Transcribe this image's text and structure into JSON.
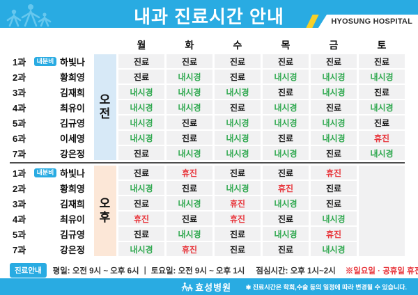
{
  "header": {
    "title": "내과 진료시간 안내",
    "hospital_en": "HYOSUNG HOSPITAL",
    "colors": {
      "bar": "#29abe2",
      "figures": "#66c7ee",
      "stripe": "#f7d028"
    }
  },
  "table": {
    "days": [
      "월",
      "화",
      "수",
      "목",
      "금",
      "토"
    ],
    "status_colors": {
      "진료": "#1b1b1b",
      "내시경": "#2ea84e",
      "휴진": "#e8353b"
    },
    "sections": [
      {
        "period": "오전",
        "period_bg": "#d7e9f7",
        "saturday_merged": false,
        "rows": [
          {
            "dept": "1과",
            "badge": "내분비",
            "name": "하빛나",
            "cells": [
              "진료",
              "진료",
              "진료",
              "진료",
              "진료",
              "진료"
            ]
          },
          {
            "dept": "2과",
            "badge": "",
            "name": "황희영",
            "cells": [
              "진료",
              "내시경",
              "진료",
              "내시경",
              "내시경",
              "내시경"
            ]
          },
          {
            "dept": "3과",
            "badge": "",
            "name": "김재희",
            "cells": [
              "내시경",
              "내시경",
              "내시경",
              "진료",
              "내시경",
              "진료"
            ]
          },
          {
            "dept": "4과",
            "badge": "",
            "name": "최유이",
            "cells": [
              "내시경",
              "내시경",
              "진료",
              "내시경",
              "진료",
              "내시경"
            ]
          },
          {
            "dept": "5과",
            "badge": "",
            "name": "김규영",
            "cells": [
              "내시경",
              "진료",
              "내시경",
              "내시경",
              "내시경",
              "진료"
            ]
          },
          {
            "dept": "6과",
            "badge": "",
            "name": "이세영",
            "cells": [
              "내시경",
              "진료",
              "내시경",
              "진료",
              "내시경",
              "휴진"
            ]
          },
          {
            "dept": "7과",
            "badge": "",
            "name": "강은정",
            "cells": [
              "진료",
              "내시경",
              "내시경",
              "내시경",
              "진료",
              "내시경"
            ]
          }
        ]
      },
      {
        "period": "오후",
        "period_bg": "#fce7d7",
        "saturday_merged": true,
        "rows": [
          {
            "dept": "1과",
            "badge": "내분비",
            "name": "하빛나",
            "cells": [
              "진료",
              "휴진",
              "진료",
              "진료",
              "휴진",
              ""
            ]
          },
          {
            "dept": "2과",
            "badge": "",
            "name": "황희영",
            "cells": [
              "내시경",
              "진료",
              "내시경",
              "휴진",
              "진료",
              ""
            ]
          },
          {
            "dept": "3과",
            "badge": "",
            "name": "김재희",
            "cells": [
              "진료",
              "내시경",
              "휴진",
              "내시경",
              "진료",
              ""
            ]
          },
          {
            "dept": "4과",
            "badge": "",
            "name": "최유이",
            "cells": [
              "휴진",
              "진료",
              "휴진",
              "진료",
              "내시경",
              ""
            ]
          },
          {
            "dept": "5과",
            "badge": "",
            "name": "김규영",
            "cells": [
              "진료",
              "내시경",
              "진료",
              "내시경",
              "휴진",
              ""
            ]
          },
          {
            "dept": "7과",
            "badge": "",
            "name": "강은정",
            "cells": [
              "내시경",
              "휴진",
              "진료",
              "진료",
              "내시경",
              ""
            ]
          }
        ]
      }
    ]
  },
  "info": {
    "badge": "진료안내",
    "weekday": "평일: 오전 9시 ~ 오후 6시",
    "separator": "|",
    "saturday": "토요일: 오전 9시 ~ 오후 1시",
    "lunch": "점심시간: 오후 1시~2시",
    "holiday": "※일요일 · 공휴일 휴진"
  },
  "footer": {
    "logo": "효성병원",
    "note": "✱ 진료시간은 학회,수술 등의 일정에 따라 변경될 수 있습니다."
  }
}
